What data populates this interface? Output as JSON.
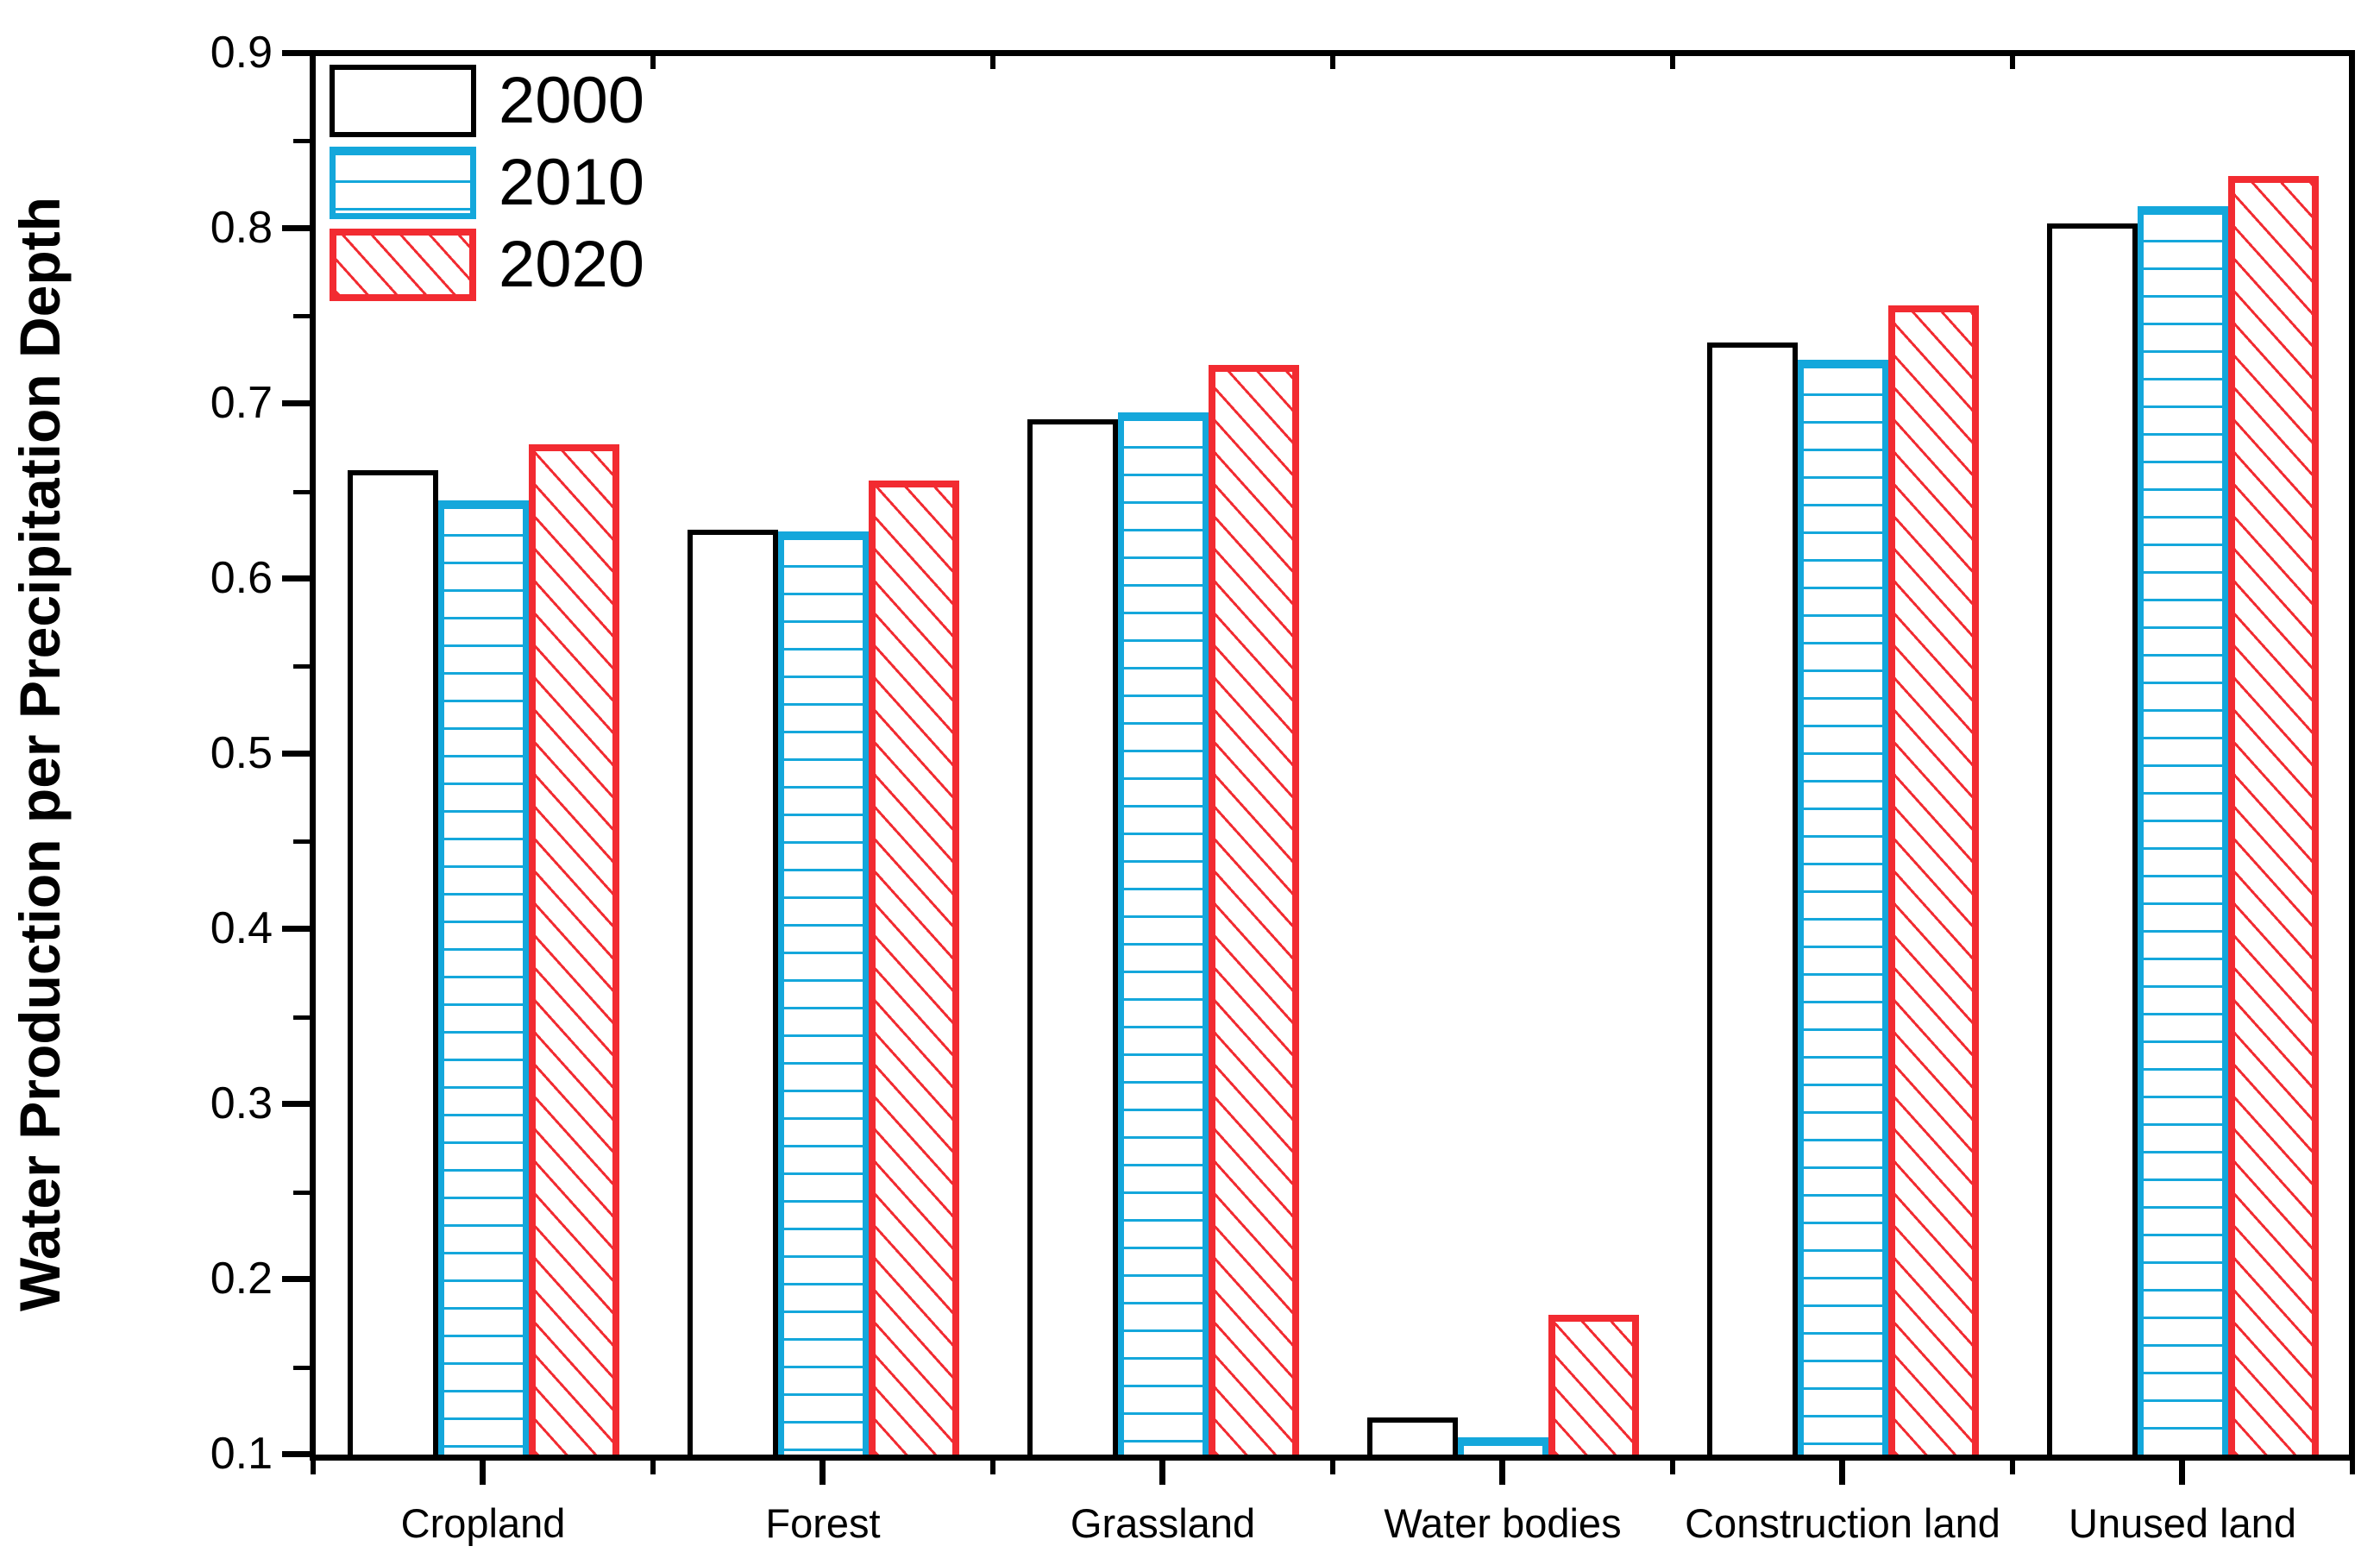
{
  "chart_data": {
    "type": "bar",
    "title": "",
    "ylabel": "Water Production per Precipitation Depth",
    "xlabel": "",
    "ylim": [
      0.1,
      0.9
    ],
    "y_major_step": 0.1,
    "y_minor_step": 0.05,
    "y_tick_labels": [
      "0.9",
      "0.8",
      "0.7",
      "0.6",
      "0.5",
      "0.4",
      "0.3",
      "0.2",
      "0.1"
    ],
    "categories": [
      "Cropland",
      "Forest",
      "Grassland",
      "Water bodies",
      "Construction land",
      "Unused land"
    ],
    "series": [
      {
        "name": "2000",
        "color": "#000000",
        "pattern": "plain-white-outline",
        "values": [
          0.662,
          0.628,
          0.691,
          0.121,
          0.735,
          0.803
        ]
      },
      {
        "name": "2010",
        "color": "#14A7DB",
        "pattern": "horizontal-lines",
        "values": [
          0.645,
          0.627,
          0.695,
          0.11,
          0.725,
          0.813
        ]
      },
      {
        "name": "2020",
        "color": "#F22B31",
        "pattern": "diagonal-hatch",
        "values": [
          0.677,
          0.656,
          0.722,
          0.18,
          0.756,
          0.83
        ]
      }
    ],
    "legend": {
      "position": "top-left",
      "entries": [
        "2000",
        "2010",
        "2020"
      ]
    },
    "grid": "off",
    "background": "#FFFFFF",
    "axis_color": "#000000"
  }
}
